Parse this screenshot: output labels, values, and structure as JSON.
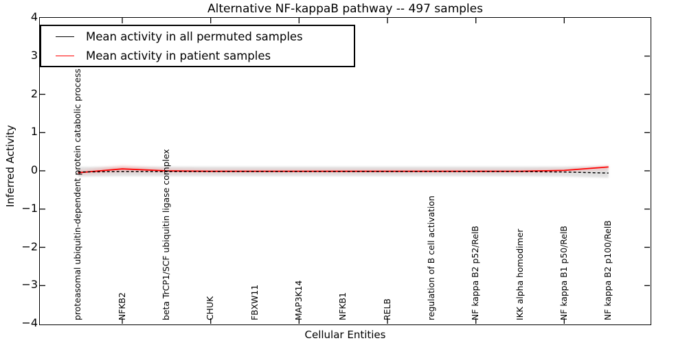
{
  "figure": {
    "title": "Alternative NF-kappaB pathway -- 497 samples"
  },
  "axes": {
    "xlabel": "Cellular Entities",
    "ylabel": "Inferred Activity"
  },
  "legend": {
    "entries": [
      {
        "label": "Mean activity in all permuted samples",
        "color": "#000000",
        "style": "solid"
      },
      {
        "label": "Mean activity in patient samples",
        "color": "#ff0000",
        "style": "solid"
      }
    ]
  },
  "chart_data": {
    "type": "line",
    "title": "Alternative NF-kappaB pathway -- 497 samples",
    "xlabel": "Cellular Entities",
    "ylabel": "Inferred Activity",
    "ylim": [
      -4,
      4
    ],
    "yticks": [
      4,
      3,
      2,
      1,
      0,
      -1,
      -2,
      -3,
      -4
    ],
    "grid": false,
    "legend_position": "upper left",
    "categories": [
      "proteasomal ubiquitin-dependent protein catabolic process",
      "NFKB2",
      "beta TrCP1/SCF ubiquitin ligase complex",
      "CHUK",
      "FBXW11",
      "MAP3K14",
      "NFKB1",
      "RELB",
      "regulation of B cell activation",
      "NF kappa B2 p52/RelB",
      "IKK alpha homodimer",
      "NF kappa B1 p50/RelB",
      "NF kappa B2 p100/RelB"
    ],
    "series": [
      {
        "name": "Mean activity in all permuted samples",
        "color": "#000000",
        "line_style": "dashed",
        "values": [
          -0.03,
          -0.02,
          -0.02,
          -0.02,
          -0.02,
          -0.02,
          -0.02,
          -0.02,
          -0.02,
          -0.02,
          -0.02,
          -0.03,
          -0.06
        ]
      },
      {
        "name": "Mean activity in patient samples",
        "color": "#ff0000",
        "line_style": "solid",
        "values": [
          -0.05,
          0.05,
          0.0,
          -0.01,
          -0.01,
          -0.01,
          -0.01,
          -0.01,
          -0.01,
          -0.01,
          -0.01,
          0.01,
          0.1
        ]
      }
    ],
    "bands": [
      {
        "name": "permuted-samples-range",
        "color": "#d9d9d9",
        "upper": [
          0.1,
          0.11,
          0.11,
          0.11,
          0.11,
          0.11,
          0.11,
          0.11,
          0.11,
          0.11,
          0.11,
          0.11,
          0.12
        ],
        "lower": [
          -0.15,
          -0.14,
          -0.14,
          -0.14,
          -0.14,
          -0.14,
          -0.14,
          -0.14,
          -0.14,
          -0.14,
          -0.14,
          -0.15,
          -0.18
        ]
      },
      {
        "name": "patient-samples-range",
        "color": "#ff8080",
        "upper": [
          0.0,
          0.14,
          0.05,
          0.03,
          0.03,
          0.03,
          0.03,
          0.03,
          0.03,
          0.03,
          0.03,
          0.05,
          0.14
        ],
        "lower": [
          -0.09,
          -0.03,
          -0.04,
          -0.05,
          -0.05,
          -0.05,
          -0.05,
          -0.05,
          -0.05,
          -0.05,
          -0.05,
          -0.03,
          0.04
        ]
      }
    ],
    "xticks_at_category_index": [
      1,
      3,
      5,
      7,
      9,
      11
    ]
  }
}
